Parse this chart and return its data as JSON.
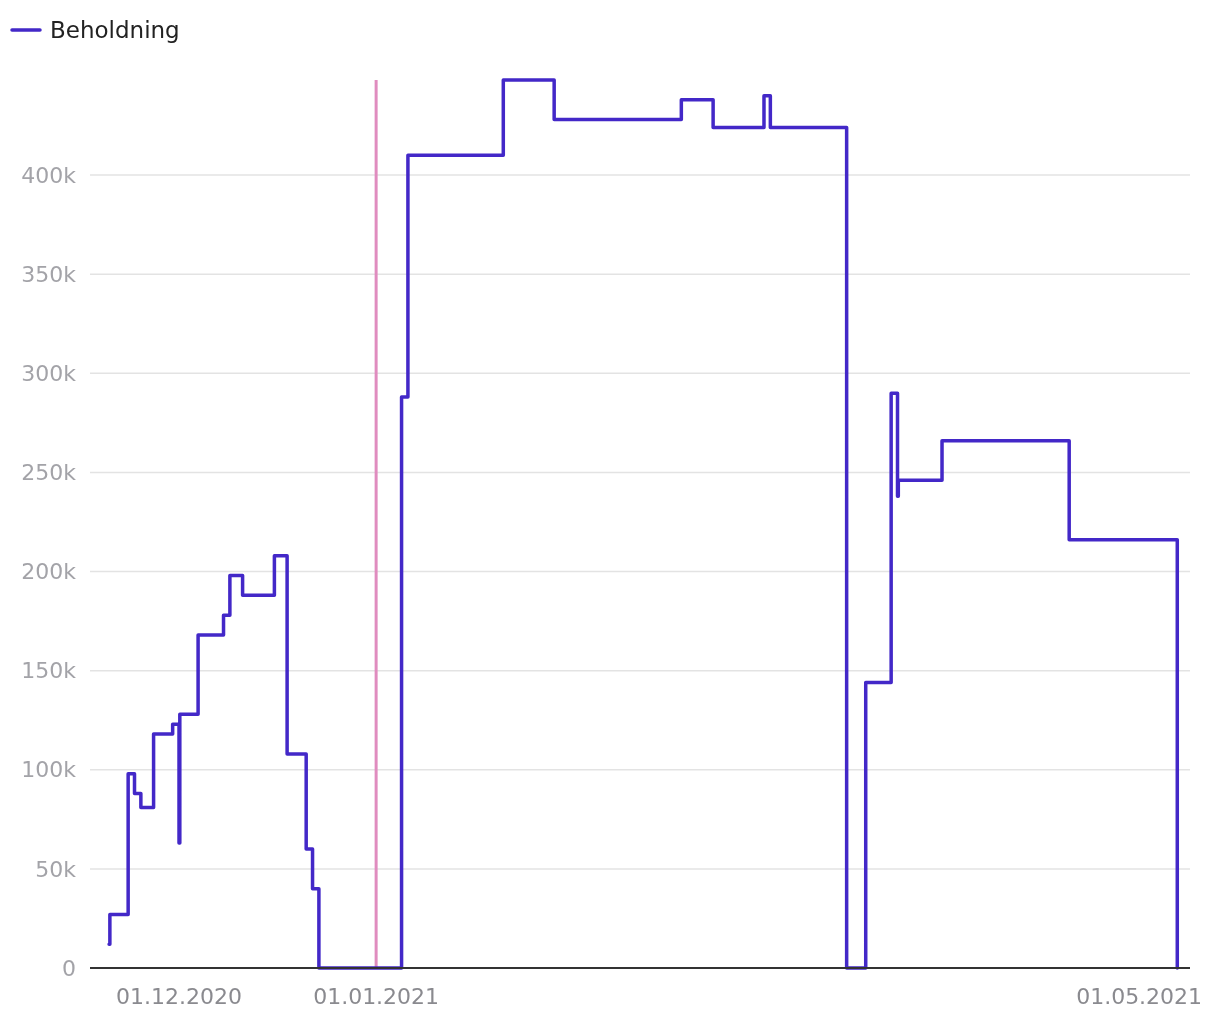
{
  "chart_data": {
    "type": "step",
    "legend": "top left",
    "grid": "y",
    "xlim": [
      "2020-11-17",
      "2021-05-09"
    ],
    "xticks": [
      {
        "value": "2020-12-01",
        "label": "01.12.2020"
      },
      {
        "value": "2021-01-01",
        "label": "01.01.2021"
      },
      {
        "value": "2021-05-01",
        "label": "01.05.2021"
      }
    ],
    "ylim": [
      0,
      450000
    ],
    "yticks": [
      {
        "value": 0,
        "label": "0"
      },
      {
        "value": 50000,
        "label": "50k"
      },
      {
        "value": 100000,
        "label": "100k"
      },
      {
        "value": 150000,
        "label": "150k"
      },
      {
        "value": 200000,
        "label": "200k"
      },
      {
        "value": 250000,
        "label": "250k"
      },
      {
        "value": 300000,
        "label": "300k"
      },
      {
        "value": 350000,
        "label": "350k"
      },
      {
        "value": 400000,
        "label": "400k"
      }
    ],
    "ref_lines": [
      {
        "axis": "x",
        "value": "2021-01-01",
        "color": "#e08cbf"
      }
    ],
    "series": [
      {
        "name": "Beholdning",
        "color": "#4328c8",
        "x": [
          "2020-11-20T00:00",
          "2020-11-20T03:00",
          "2020-11-23",
          "2020-11-24",
          "2020-11-25",
          "2020-11-27",
          "2020-11-30",
          "2020-12-01T00:00",
          "2020-12-01T03:00",
          "2020-12-04",
          "2020-12-08",
          "2020-12-09",
          "2020-12-11",
          "2020-12-16",
          "2020-12-18",
          "2020-12-21",
          "2020-12-22",
          "2020-12-23",
          "2021-01-05",
          "2021-01-06",
          "2021-01-21",
          "2021-01-29",
          "2021-02-18",
          "2021-02-23",
          "2021-03-03",
          "2021-03-04",
          "2021-03-16",
          "2021-03-19",
          "2021-03-23",
          "2021-03-24T00:00",
          "2021-03-24T03:00",
          "2021-03-31",
          "2021-04-20",
          "2021-05-07"
        ],
        "values": [
          12000,
          27000,
          98000,
          88000,
          81000,
          118000,
          123000,
          63000,
          128000,
          168000,
          178000,
          198000,
          188000,
          208000,
          108000,
          60000,
          40000,
          0,
          288000,
          410000,
          448000,
          428000,
          438000,
          424000,
          440000,
          424000,
          0,
          144000,
          290000,
          238000,
          246000,
          266000,
          216000,
          0
        ]
      }
    ]
  }
}
